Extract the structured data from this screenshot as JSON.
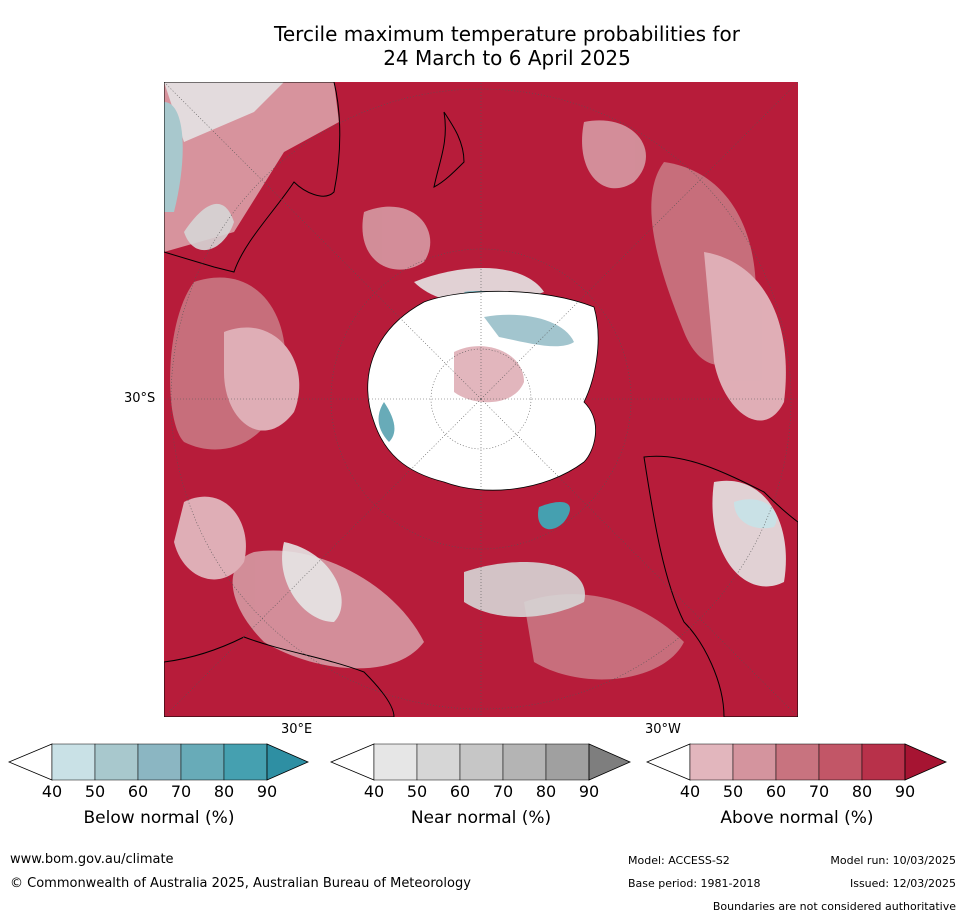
{
  "title": {
    "line1": "Tercile maximum temperature probabilities for",
    "line2": "24 March to 6 April 2025"
  },
  "map": {
    "projection": "south-polar-stereographic",
    "labels": {
      "lat": "30°S",
      "lon_east": "30°E",
      "lon_west": "30°W"
    },
    "colors": {
      "ocean_dominant": "#b71c3a",
      "land_outline": "#000000",
      "antarctica": "#ffffff"
    }
  },
  "colorbars": [
    {
      "title": "Below normal (%)",
      "ticks": [
        "40",
        "50",
        "60",
        "70",
        "80",
        "90"
      ],
      "colors": [
        "#ffffff",
        "#c9e1e6",
        "#a8c8cd",
        "#8bb6c2",
        "#68abb8",
        "#45a0b0",
        "#2e8fa3"
      ]
    },
    {
      "title": "Near normal (%)",
      "ticks": [
        "40",
        "50",
        "60",
        "70",
        "80",
        "90"
      ],
      "colors": [
        "#ffffff",
        "#e6e6e6",
        "#d6d6d6",
        "#c6c6c6",
        "#b4b4b4",
        "#a0a0a0",
        "#7e7e7e"
      ]
    },
    {
      "title": "Above normal (%)",
      "ticks": [
        "40",
        "50",
        "60",
        "70",
        "80",
        "90"
      ],
      "colors": [
        "#ffffff",
        "#e2b6bd",
        "#d4949e",
        "#c8737f",
        "#c25667",
        "#b8314a",
        "#a61432"
      ]
    }
  ],
  "footer": {
    "website": "www.bom.gov.au/climate",
    "copyright": "© Commonwealth of Australia 2025, Australian Bureau of Meteorology",
    "model": "Model: ACCESS-S2",
    "model_run": "Model run: 10/03/2025",
    "base_period": "Base period: 1981-2018",
    "issued": "Issued: 12/03/2025",
    "disclaimer": "Boundaries are not considered authoritative"
  }
}
